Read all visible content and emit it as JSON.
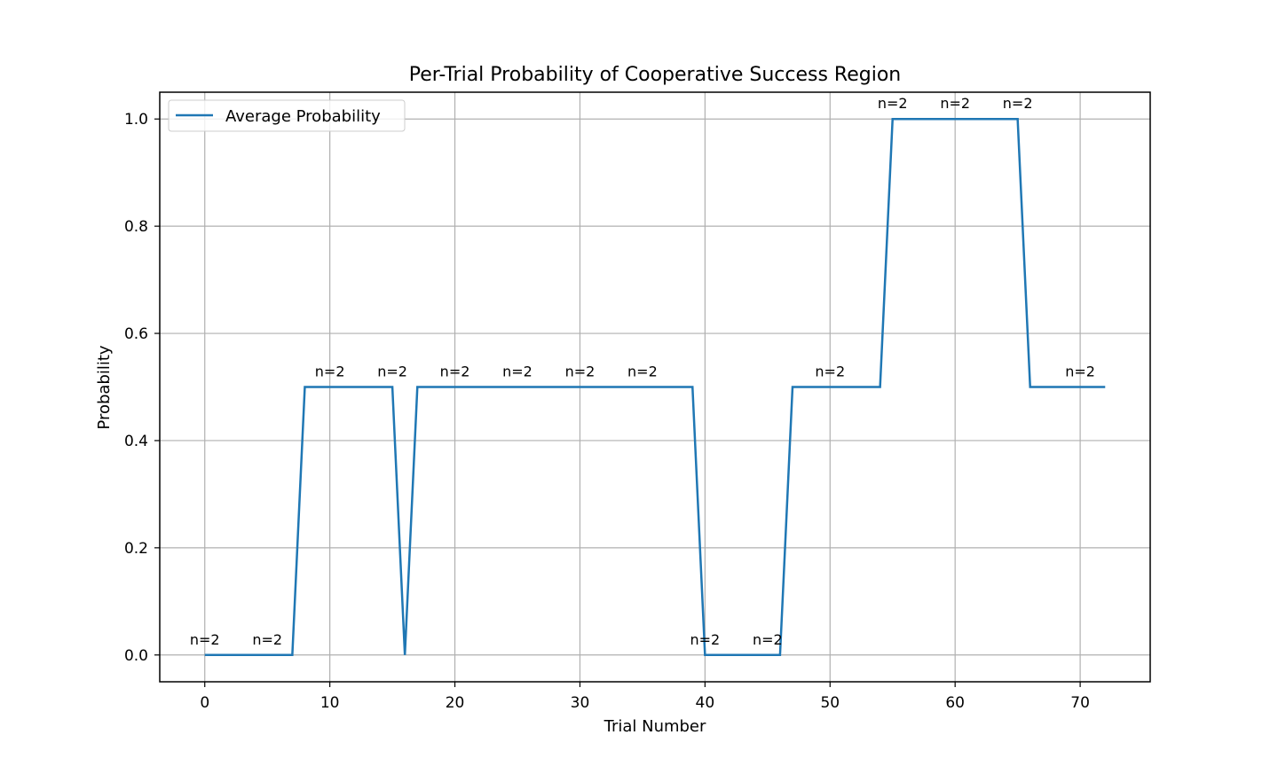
{
  "chart_data": {
    "type": "line",
    "title": "Per-Trial Probability of Cooperative Success Region",
    "xlabel": "Trial Number",
    "ylabel": "Probability",
    "xlim": [
      -3.6,
      75.6
    ],
    "ylim": [
      -0.05,
      1.05
    ],
    "xticks": [
      0,
      10,
      20,
      30,
      40,
      50,
      60,
      70
    ],
    "yticks": [
      0.0,
      0.2,
      0.4,
      0.6,
      0.8,
      1.0
    ],
    "xtick_labels": [
      "0",
      "10",
      "20",
      "30",
      "40",
      "50",
      "60",
      "70"
    ],
    "ytick_labels": [
      "0.0",
      "0.2",
      "0.4",
      "0.6",
      "0.8",
      "1.0"
    ],
    "grid": true,
    "legend_position": "upper-left",
    "series": [
      {
        "name": "Average Probability",
        "color": "#1f77b4",
        "x": [
          0,
          7,
          8,
          15,
          16,
          17,
          39,
          40,
          46,
          47,
          54,
          55,
          65,
          66,
          72
        ],
        "y": [
          0.0,
          0.0,
          0.5,
          0.5,
          0.0,
          0.5,
          0.5,
          0.0,
          0.0,
          0.5,
          0.5,
          1.0,
          1.0,
          0.5,
          0.5
        ]
      }
    ],
    "annotations": [
      {
        "text": "n=2",
        "x": 0,
        "y": 0.0
      },
      {
        "text": "n=2",
        "x": 5,
        "y": 0.0
      },
      {
        "text": "n=2",
        "x": 10,
        "y": 0.5
      },
      {
        "text": "n=2",
        "x": 15,
        "y": 0.5
      },
      {
        "text": "n=2",
        "x": 20,
        "y": 0.5
      },
      {
        "text": "n=2",
        "x": 25,
        "y": 0.5
      },
      {
        "text": "n=2",
        "x": 30,
        "y": 0.5
      },
      {
        "text": "n=2",
        "x": 35,
        "y": 0.5
      },
      {
        "text": "n=2",
        "x": 40,
        "y": 0.0
      },
      {
        "text": "n=2",
        "x": 45,
        "y": 0.0
      },
      {
        "text": "n=2",
        "x": 50,
        "y": 0.5
      },
      {
        "text": "n=2",
        "x": 55,
        "y": 1.0
      },
      {
        "text": "n=2",
        "x": 60,
        "y": 1.0
      },
      {
        "text": "n=2",
        "x": 65,
        "y": 1.0
      },
      {
        "text": "n=2",
        "x": 70,
        "y": 0.5
      }
    ]
  }
}
